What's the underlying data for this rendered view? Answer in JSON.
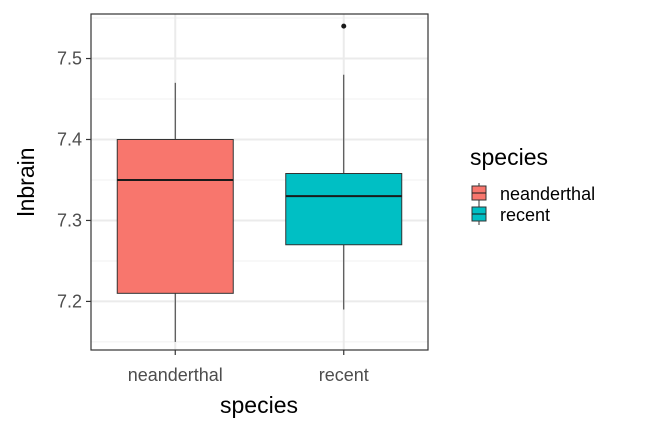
{
  "chart_data": {
    "type": "boxplot",
    "xlabel": "species",
    "ylabel": "lnbrain",
    "ylim": [
      7.14,
      7.555
    ],
    "yticks": [
      7.2,
      7.3,
      7.4,
      7.5
    ],
    "ytick_labels": [
      "7.2",
      "7.3",
      "7.4",
      "7.5"
    ],
    "grid": true,
    "legend": {
      "title": "species",
      "position": "right"
    },
    "series": [
      {
        "name": "neanderthal",
        "color": "#F8766D",
        "whisker_low": 7.15,
        "q1": 7.21,
        "median": 7.35,
        "q3": 7.4,
        "whisker_high": 7.47,
        "outliers": []
      },
      {
        "name": "recent",
        "color": "#00BFC4",
        "whisker_low": 7.19,
        "q1": 7.27,
        "median": 7.33,
        "q3": 7.358,
        "whisker_high": 7.48,
        "outliers": [
          7.54
        ]
      }
    ]
  }
}
